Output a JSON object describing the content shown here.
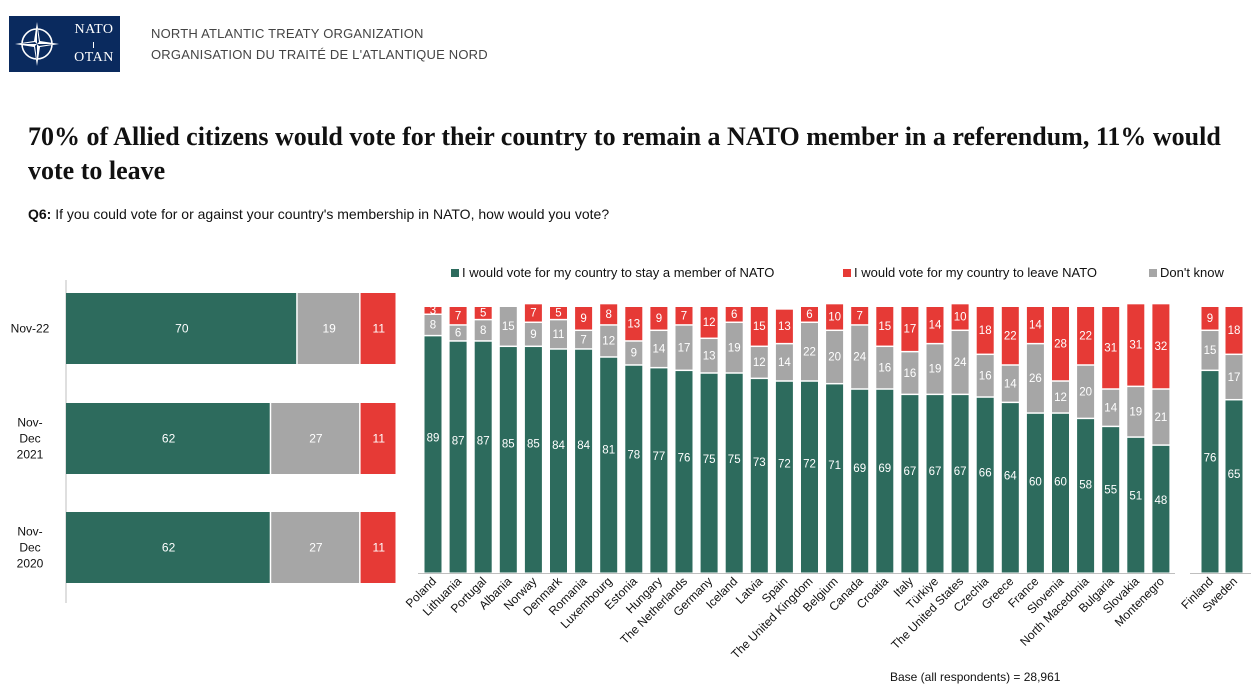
{
  "header": {
    "logo_top": "NATO",
    "logo_bottom": "OTAN",
    "org_en": "NORTH ATLANTIC TREATY ORGANIZATION",
    "org_fr": "ORGANISATION DU TRAITÉ DE L'ATLANTIQUE NORD"
  },
  "title": "70% of Allied citizens would vote for their country to remain a NATO member in a referendum, 11% would vote to leave",
  "question": {
    "label": "Q6:",
    "text": " If you could vote for or against your country's membership in NATO, how would you vote?"
  },
  "legend": {
    "stay": "I would vote for my country to stay a member of NATO",
    "leave": "I would vote for my country to leave NATO",
    "dont_know": "Don't know"
  },
  "base_note": "Base (all respondents) = 28,961",
  "colors": {
    "stay": "#2d6b5d",
    "leave": "#e63a36",
    "dont_know": "#a6a6a6"
  },
  "chart_data": [
    {
      "type": "bar",
      "orientation": "horizontal",
      "stacked": true,
      "categories": [
        [
          "Nov-22"
        ],
        [
          "Nov-",
          "Dec",
          "2021"
        ],
        [
          "Nov-",
          "Dec",
          "2020"
        ]
      ],
      "series": [
        {
          "name": "I would vote for my country to stay a member of NATO",
          "values": [
            70,
            62,
            62
          ]
        },
        {
          "name": "Don't know",
          "values": [
            19,
            27,
            27
          ]
        },
        {
          "name": "I would vote for my country to leave NATO",
          "values": [
            11,
            11,
            11
          ]
        }
      ]
    },
    {
      "type": "bar",
      "orientation": "vertical",
      "stacked": true,
      "legend_position": "top",
      "categories": [
        "Poland",
        "Lithuania",
        "Portugal",
        "Albania",
        "Norway",
        "Denmark",
        "Romania",
        "Luxembourg",
        "Estonia",
        "Hungary",
        "The Netherlands",
        "Germany",
        "Iceland",
        "Latvia",
        "Spain",
        "The United Kingdom",
        "Belgium",
        "Canada",
        "Croatia",
        "Italy",
        "Türkiye",
        "The United States",
        "Czechia",
        "Greece",
        "France",
        "Slovenia",
        "North Macedonia",
        "Bulgaria",
        "Slovakia",
        "Montenegro",
        "Finland",
        "Sweden"
      ],
      "series": [
        {
          "name": "I would vote for my country to stay a member of NATO",
          "values": [
            89,
            87,
            87,
            85,
            85,
            84,
            84,
            81,
            78,
            77,
            76,
            75,
            75,
            73,
            72,
            72,
            71,
            69,
            69,
            67,
            67,
            67,
            66,
            64,
            60,
            60,
            58,
            55,
            51,
            48,
            76,
            65
          ]
        },
        {
          "name": "Don't know",
          "values": [
            8,
            6,
            8,
            15,
            9,
            11,
            7,
            12,
            9,
            14,
            17,
            13,
            19,
            12,
            14,
            22,
            20,
            24,
            16,
            16,
            19,
            24,
            16,
            14,
            26,
            12,
            20,
            14,
            19,
            21,
            15,
            17
          ]
        },
        {
          "name": "I would vote for my country to leave NATO",
          "values": [
            3,
            7,
            5,
            0,
            7,
            5,
            9,
            8,
            13,
            9,
            7,
            12,
            6,
            15,
            13,
            6,
            10,
            7,
            15,
            17,
            14,
            10,
            18,
            22,
            14,
            28,
            22,
            31,
            31,
            32,
            9,
            18
          ]
        }
      ]
    }
  ]
}
